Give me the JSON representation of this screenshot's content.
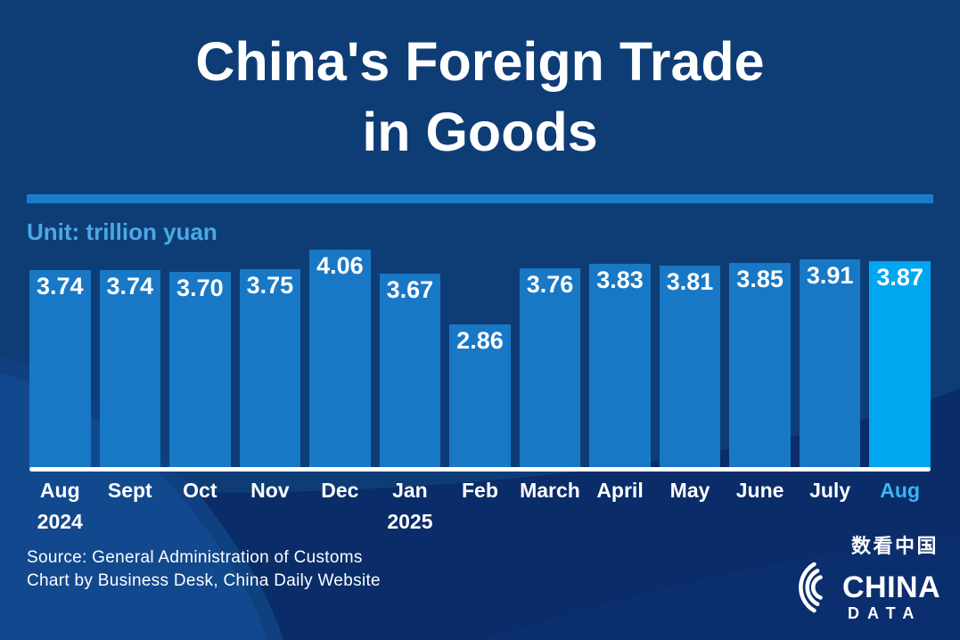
{
  "title": {
    "line1": "China's Foreign Trade",
    "line2": "in Goods"
  },
  "unit_label": "Unit: trillion yuan",
  "source": {
    "line1": "Source: General Administration of Customs",
    "line2": "Chart by Business Desk, China Daily Website"
  },
  "logo": {
    "chinese": "数看中国",
    "line1": "CHINA",
    "line2": "DATA"
  },
  "colors": {
    "bg_top": "#0e3d76",
    "bg_bottom": "#0a2c69",
    "left_swoosh": "#12498e",
    "bar": "#1878c6",
    "bar_highlight": "#00a6f0",
    "divider": "#1b7cc9",
    "unit_text": "#4ba9e4",
    "highlight_text": "#3ab4f4",
    "text": "#ffffff"
  },
  "chart_data": {
    "type": "bar",
    "title": "China's Foreign Trade in Goods",
    "unit": "trillion yuan",
    "categories": [
      "Aug",
      "Sept",
      "Oct",
      "Nov",
      "Dec",
      "Jan",
      "Feb",
      "March",
      "April",
      "May",
      "June",
      "July",
      "Aug"
    ],
    "category_sublabels": [
      "2024",
      "",
      "",
      "",
      "",
      "2025",
      "",
      "",
      "",
      "",
      "",
      "",
      ""
    ],
    "values": [
      3.74,
      3.74,
      3.7,
      3.75,
      4.06,
      3.67,
      2.86,
      3.76,
      3.83,
      3.81,
      3.85,
      3.91,
      3.87
    ],
    "value_format": "2-decimals",
    "highlight_index": 12,
    "legend": "none",
    "grid": false,
    "ylabel": "",
    "xlabel": "",
    "axis_baseline": "white"
  }
}
